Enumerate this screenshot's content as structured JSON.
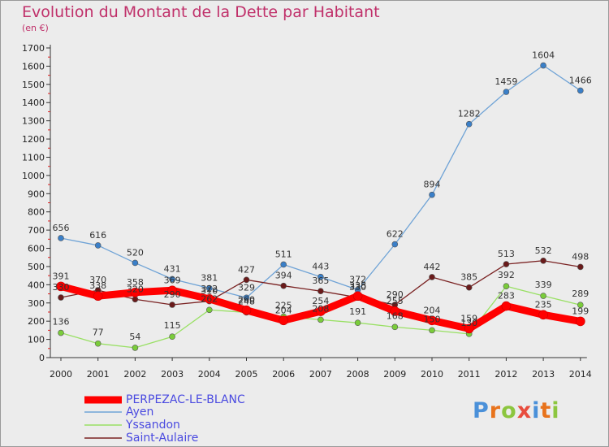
{
  "title": "Evolution du Montant de la Dette par Habitant",
  "subtitle": "(en €)",
  "logo": {
    "text": "Proxiti",
    "letters": [
      {
        "ch": "P",
        "color": "#4a90d9"
      },
      {
        "ch": "r",
        "color": "#e8731c"
      },
      {
        "ch": "o",
        "color": "#8cc63f"
      },
      {
        "ch": "x",
        "color": "#e84c3d"
      },
      {
        "ch": "i",
        "color": "#4a90d9"
      },
      {
        "ch": "t",
        "color": "#e8731c"
      },
      {
        "ch": "i",
        "color": "#8cc63f"
      }
    ]
  },
  "chart_data": {
    "type": "line",
    "title": "Evolution du Montant de la Dette par Habitant",
    "ylabel": "(en €)",
    "xlabel": "",
    "categories": [
      "2000",
      "2001",
      "2002",
      "2003",
      "2004",
      "2005",
      "2006",
      "2007",
      "2008",
      "2009",
      "2010",
      "2011",
      "2012",
      "2013",
      "2014"
    ],
    "ylim": [
      0,
      1700
    ],
    "yticks": [
      0,
      100,
      200,
      300,
      400,
      500,
      600,
      700,
      800,
      900,
      1000,
      1100,
      1200,
      1300,
      1400,
      1500,
      1600,
      1700
    ],
    "grid": false,
    "legend": "bottom-left",
    "series": [
      {
        "name": "PERPEZAC-LE-BLANC",
        "color": "#ff0000",
        "marker": "#ff0000",
        "values": [
          391,
          338,
          358,
          369,
          322,
          260,
          204,
          254,
          338,
          255,
          204,
          159,
          283,
          235,
          199
        ]
      },
      {
        "name": "Ayen",
        "color": "#6fa3d6",
        "marker": "#3a7fc8",
        "values": [
          656,
          616,
          520,
          431,
          381,
          329,
          511,
          443,
          372,
          622,
          894,
          1282,
          1459,
          1604,
          1466
        ]
      },
      {
        "name": "Yssandon",
        "color": "#99e064",
        "marker": "#7acc3a",
        "values": [
          136,
          77,
          54,
          115,
          262,
          248,
          225,
          208,
          191,
          168,
          150,
          130,
          392,
          339,
          289
        ]
      },
      {
        "name": "Saint-Aulaire",
        "color": "#7a2222",
        "marker": "#6a1a1a",
        "values": [
          330,
          370,
          320,
          290,
          310,
          427,
          394,
          365,
          330,
          290,
          442,
          385,
          513,
          532,
          498
        ]
      }
    ]
  }
}
